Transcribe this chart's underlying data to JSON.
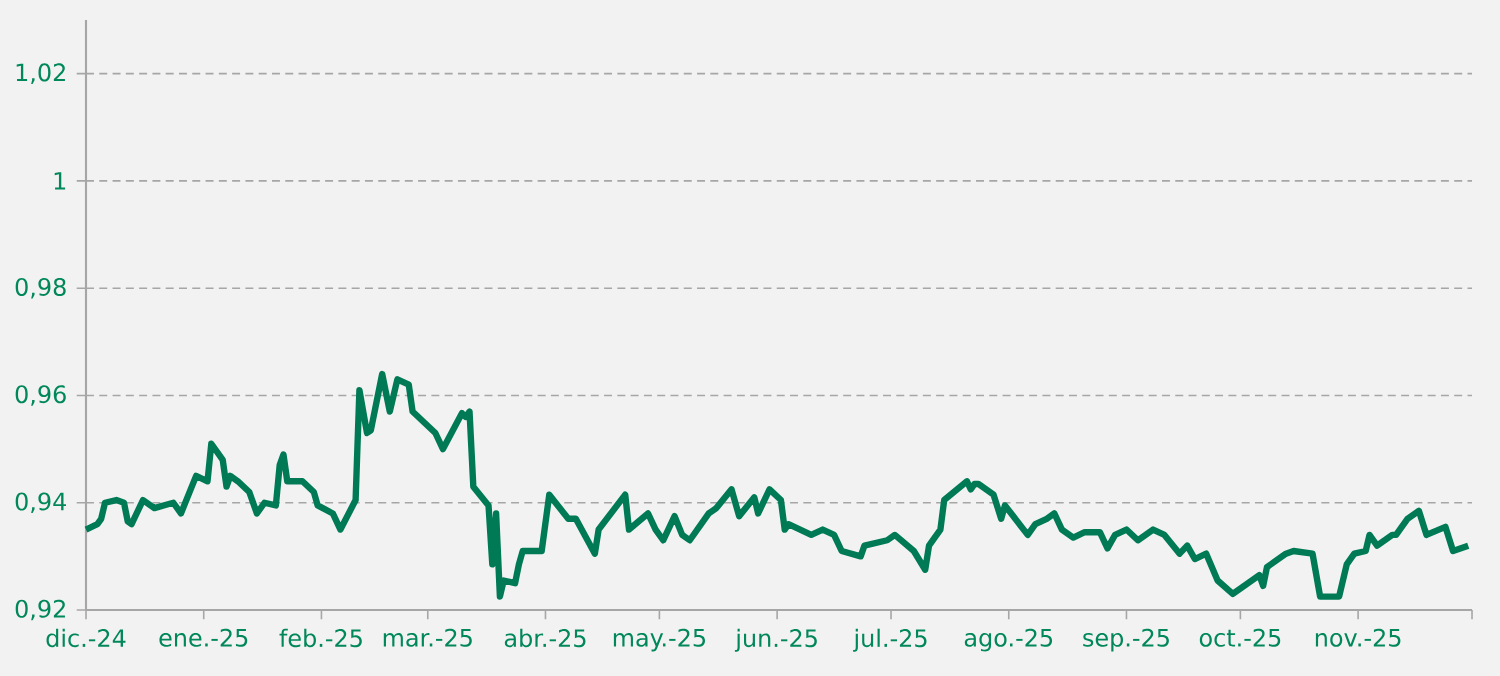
{
  "chart_data": {
    "type": "line",
    "grid": "y",
    "marker": "none",
    "line_style": "solid",
    "ylim": [
      0.92,
      1.03
    ],
    "yticks": [
      {
        "value": 0.92,
        "label": "0,92"
      },
      {
        "value": 0.94,
        "label": "0,94"
      },
      {
        "value": 0.96,
        "label": "0,96"
      },
      {
        "value": 0.98,
        "label": "0,98"
      },
      {
        "value": 1,
        "label": "1"
      },
      {
        "value": 1.02,
        "label": "1,02"
      }
    ],
    "xlim": [
      "2024-12-01",
      "2025-12-01"
    ],
    "xticks": [
      {
        "value": "2024-12-01",
        "label": "dic.-24"
      },
      {
        "value": "2025-01-01",
        "label": "ene.-25"
      },
      {
        "value": "2025-02-01",
        "label": "feb.-25"
      },
      {
        "value": "2025-03-01",
        "label": "mar.-25"
      },
      {
        "value": "2025-04-01",
        "label": "abr.-25"
      },
      {
        "value": "2025-05-01",
        "label": "may.-25"
      },
      {
        "value": "2025-06-01",
        "label": "jun.-25"
      },
      {
        "value": "2025-07-01",
        "label": "jul.-25"
      },
      {
        "value": "2025-08-01",
        "label": "ago.-25"
      },
      {
        "value": "2025-09-01",
        "label": "sep.-25"
      },
      {
        "value": "2025-10-01",
        "label": "oct.-25"
      },
      {
        "value": "2025-11-01",
        "label": "nov.-25"
      },
      {
        "value": "2025-12-01",
        "label": null
      }
    ],
    "series": [
      {
        "color": "#007a55",
        "x": [
          "2024-12-01",
          "2024-12-04",
          "2024-12-05",
          "2024-12-06",
          "2024-12-09",
          "2024-12-11",
          "2024-12-12",
          "2024-12-13",
          "2024-12-16",
          "2024-12-19",
          "2024-12-24",
          "2024-12-26",
          "2024-12-30",
          "2025-01-02",
          "2025-01-03",
          "2025-01-06",
          "2025-01-07",
          "2025-01-08",
          "2025-01-10",
          "2025-01-13",
          "2025-01-15",
          "2025-01-17",
          "2025-01-20",
          "2025-01-21",
          "2025-01-22",
          "2025-01-23",
          "2025-01-27",
          "2025-01-30",
          "2025-01-31",
          "2025-02-04",
          "2025-02-06",
          "2025-02-10",
          "2025-02-11",
          "2025-02-13",
          "2025-02-14",
          "2025-02-17",
          "2025-02-19",
          "2025-02-21",
          "2025-02-24",
          "2025-02-25",
          "2025-02-28",
          "2025-03-03",
          "2025-03-05",
          "2025-03-10",
          "2025-03-11",
          "2025-03-12",
          "2025-03-13",
          "2025-03-17",
          "2025-03-18",
          "2025-03-19",
          "2025-03-20",
          "2025-03-21",
          "2025-03-24",
          "2025-03-25",
          "2025-03-26",
          "2025-03-31",
          "2025-04-02",
          "2025-04-07",
          "2025-04-09",
          "2025-04-14",
          "2025-04-15",
          "2025-04-22",
          "2025-04-23",
          "2025-04-28",
          "2025-04-30",
          "2025-05-02",
          "2025-05-05",
          "2025-05-07",
          "2025-05-09",
          "2025-05-14",
          "2025-05-16",
          "2025-05-20",
          "2025-05-22",
          "2025-05-26",
          "2025-05-27",
          "2025-05-30",
          "2025-06-02",
          "2025-06-03",
          "2025-06-04",
          "2025-06-10",
          "2025-06-13",
          "2025-06-16",
          "2025-06-18",
          "2025-06-23",
          "2025-06-24",
          "2025-06-30",
          "2025-07-02",
          "2025-07-07",
          "2025-07-10",
          "2025-07-11",
          "2025-07-14",
          "2025-07-15",
          "2025-07-21",
          "2025-07-22",
          "2025-07-23",
          "2025-07-24",
          "2025-07-28",
          "2025-07-30",
          "2025-07-31",
          "2025-08-06",
          "2025-08-08",
          "2025-08-11",
          "2025-08-13",
          "2025-08-15",
          "2025-08-18",
          "2025-08-21",
          "2025-08-25",
          "2025-08-27",
          "2025-08-29",
          "2025-09-01",
          "2025-09-04",
          "2025-09-08",
          "2025-09-11",
          "2025-09-15",
          "2025-09-17",
          "2025-09-19",
          "2025-09-22",
          "2025-09-25",
          "2025-09-29",
          "2025-10-02",
          "2025-10-06",
          "2025-10-07",
          "2025-10-08",
          "2025-10-13",
          "2025-10-15",
          "2025-10-20",
          "2025-10-22",
          "2025-10-27",
          "2025-10-29",
          "2025-10-31",
          "2025-11-03",
          "2025-11-04",
          "2025-11-06",
          "2025-11-10",
          "2025-11-11",
          "2025-11-14",
          "2025-11-17",
          "2025-11-19",
          "2025-11-24",
          "2025-11-26",
          "2025-11-30"
        ],
        "values": [
          0.935,
          0.936,
          0.937,
          0.94,
          0.9405,
          0.94,
          0.9365,
          0.936,
          0.9405,
          0.939,
          0.94,
          0.938,
          0.945,
          0.944,
          0.951,
          0.948,
          0.943,
          0.945,
          0.944,
          0.942,
          0.938,
          0.94,
          0.9395,
          0.947,
          0.949,
          0.944,
          0.944,
          0.942,
          0.9395,
          0.938,
          0.935,
          0.9405,
          0.961,
          0.953,
          0.9535,
          0.964,
          0.957,
          0.963,
          0.962,
          0.957,
          0.955,
          0.953,
          0.95,
          0.9567,
          0.956,
          0.957,
          0.943,
          0.9395,
          0.9285,
          0.938,
          0.9225,
          0.9255,
          0.925,
          0.9285,
          0.931,
          0.931,
          0.9415,
          0.937,
          0.937,
          0.9305,
          0.935,
          0.9415,
          0.935,
          0.938,
          0.935,
          0.933,
          0.9375,
          0.934,
          0.933,
          0.938,
          0.939,
          0.9425,
          0.9375,
          0.941,
          0.938,
          0.9425,
          0.9405,
          0.935,
          0.936,
          0.934,
          0.935,
          0.934,
          0.931,
          0.93,
          0.932,
          0.933,
          0.934,
          0.931,
          0.9275,
          0.932,
          0.935,
          0.9405,
          0.944,
          0.9425,
          0.9435,
          0.9435,
          0.9415,
          0.937,
          0.9395,
          0.934,
          0.936,
          0.937,
          0.938,
          0.935,
          0.9335,
          0.9345,
          0.9345,
          0.9315,
          0.934,
          0.935,
          0.933,
          0.935,
          0.934,
          0.9305,
          0.932,
          0.9295,
          0.9305,
          0.9255,
          0.923,
          0.9245,
          0.9265,
          0.9245,
          0.928,
          0.9305,
          0.931,
          0.9305,
          0.9225,
          0.9225,
          0.9285,
          0.9305,
          0.931,
          0.934,
          0.932,
          0.934,
          0.934,
          0.937,
          0.9385,
          0.934,
          0.9355,
          0.931,
          0.932
        ]
      }
    ]
  }
}
